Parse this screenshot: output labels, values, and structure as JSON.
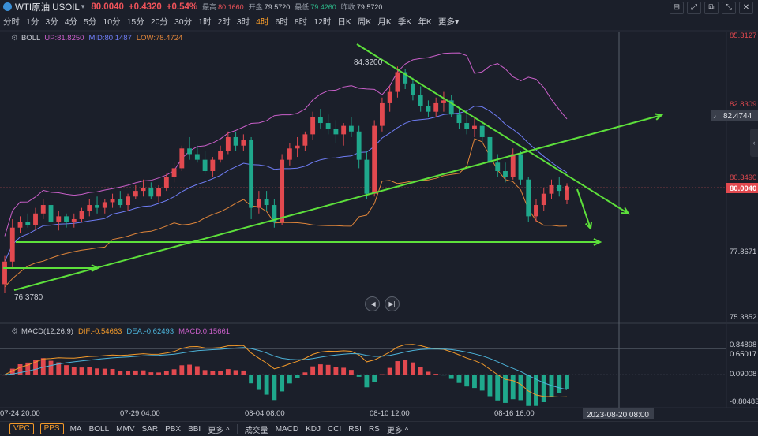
{
  "header": {
    "symbol": "WTI原油 USOIL",
    "caret": "▾",
    "price": "80.0040",
    "change": "+0.4320",
    "change_pct": "+0.54%",
    "high_label": "最高",
    "high": "80.1660",
    "open_label": "开盘",
    "open": "79.5720",
    "low_label": "最低",
    "low": "79.4260",
    "prev_close_label": "昨收",
    "prev_close": "79.5720"
  },
  "window_buttons": [
    "⊟",
    "⤢",
    "⧉",
    "⤡",
    "✕"
  ],
  "periods": [
    {
      "label": "分时",
      "active": false
    },
    {
      "label": "1分",
      "active": false
    },
    {
      "label": "3分",
      "active": false
    },
    {
      "label": "4分",
      "active": false
    },
    {
      "label": "5分",
      "active": false
    },
    {
      "label": "10分",
      "active": false
    },
    {
      "label": "15分",
      "active": false
    },
    {
      "label": "20分",
      "active": false
    },
    {
      "label": "30分",
      "active": false
    },
    {
      "label": "1时",
      "active": false
    },
    {
      "label": "2时",
      "active": false
    },
    {
      "label": "3时",
      "active": false
    },
    {
      "label": "4时",
      "active": true
    },
    {
      "label": "6时",
      "active": false
    },
    {
      "label": "8时",
      "active": false
    },
    {
      "label": "12时",
      "active": false
    },
    {
      "label": "日K",
      "active": false
    },
    {
      "label": "周K",
      "active": false
    },
    {
      "label": "月K",
      "active": false
    },
    {
      "label": "季K",
      "active": false
    },
    {
      "label": "年K",
      "active": false
    },
    {
      "label": "更多▾",
      "active": false
    }
  ],
  "boll": {
    "name": "BOLL",
    "up": "UP:81.8250",
    "mid": "MID:80.1487",
    "low": "LOW:78.4724",
    "colors": {
      "up": "#c95fc9",
      "mid": "#6f7df5",
      "low": "#e0853a"
    }
  },
  "macd": {
    "name": "MACD(12,26,9)",
    "dif": "DIF:-0.54663",
    "dea": "DEA:-0.62493",
    "macd": "MACD:0.15661",
    "colors": {
      "dif": "#f39a2a",
      "dea": "#4cb3d9",
      "macd": "#c95fc9"
    }
  },
  "price_axis": [
    "85.3127",
    "82.8309",
    "80.3490",
    "77.8671",
    "75.3852"
  ],
  "price_axis_highlights": {
    "crosshair_value": "82.4744",
    "current_value": "80.0040"
  },
  "macd_axis": [
    "0.84898",
    "0.65017",
    "0.09008",
    "-0.80483"
  ],
  "time_axis": [
    "07-24 20:00",
    "07-29 04:00",
    "08-04 08:00",
    "08-10 12:00",
    "08-16 16:00"
  ],
  "time_cursor": "2023-08-20 08:00",
  "annotations": {
    "high": "84.3200",
    "low": "76.3780"
  },
  "nav_buttons": [
    "|◀",
    "▶|"
  ],
  "side_handle": "‹",
  "bottom": {
    "tags": [
      "VPC",
      "PPS"
    ],
    "main_indicators": [
      "MA",
      "BOLL",
      "MMV",
      "SAR",
      "PBX",
      "BBI",
      "更多 ^"
    ],
    "sub_indicators": [
      "成交量",
      "MACD",
      "KDJ",
      "CCI",
      "RSI",
      "RS",
      "更多 ^"
    ]
  },
  "chart_data": {
    "type": "candlestick",
    "symbol": "WTI原油 USOIL",
    "timeframe": "4时",
    "price_range": [
      75.3852,
      85.3127
    ],
    "x": [
      "07-24 20:00",
      "07-29 04:00",
      "08-04 08:00",
      "08-10 12:00",
      "08-16 16:00"
    ],
    "candles": [
      [
        76.6,
        77.6,
        76.3,
        77.4
      ],
      [
        77.4,
        78.9,
        77.2,
        78.6
      ],
      [
        78.6,
        79.0,
        78.4,
        78.8
      ],
      [
        78.8,
        79.1,
        78.6,
        78.7
      ],
      [
        78.7,
        79.3,
        78.5,
        79.1
      ],
      [
        79.1,
        79.6,
        78.9,
        79.4
      ],
      [
        79.4,
        79.5,
        78.6,
        78.8
      ],
      [
        78.8,
        79.2,
        78.5,
        79.0
      ],
      [
        79.0,
        79.1,
        78.6,
        78.8
      ],
      [
        78.8,
        79.1,
        78.6,
        78.9
      ],
      [
        78.9,
        79.3,
        78.8,
        79.2
      ],
      [
        79.2,
        79.6,
        79.0,
        79.4
      ],
      [
        79.4,
        79.7,
        79.1,
        79.3
      ],
      [
        79.3,
        79.6,
        79.1,
        79.5
      ],
      [
        79.5,
        79.8,
        79.3,
        79.6
      ],
      [
        79.6,
        79.9,
        79.3,
        79.4
      ],
      [
        79.4,
        79.8,
        79.2,
        79.7
      ],
      [
        79.7,
        80.1,
        79.6,
        79.9
      ],
      [
        79.9,
        80.3,
        79.7,
        80.0
      ],
      [
        80.0,
        80.2,
        79.6,
        79.7
      ],
      [
        79.7,
        80.1,
        79.5,
        80.0
      ],
      [
        80.0,
        80.5,
        79.9,
        80.4
      ],
      [
        80.4,
        80.9,
        80.2,
        80.7
      ],
      [
        80.7,
        81.5,
        80.6,
        81.4
      ],
      [
        81.4,
        81.8,
        81.0,
        81.2
      ],
      [
        81.2,
        81.5,
        80.9,
        81.0
      ],
      [
        81.0,
        81.3,
        80.5,
        80.6
      ],
      [
        80.6,
        81.1,
        80.4,
        81.0
      ],
      [
        81.0,
        81.5,
        80.9,
        81.3
      ],
      [
        81.3,
        82.0,
        81.2,
        81.8
      ],
      [
        81.8,
        82.0,
        81.3,
        81.5
      ],
      [
        81.5,
        81.9,
        81.3,
        81.7
      ],
      [
        81.7,
        81.8,
        78.9,
        79.3
      ],
      [
        79.3,
        79.9,
        79.1,
        79.6
      ],
      [
        79.6,
        79.9,
        79.2,
        79.4
      ],
      [
        79.4,
        79.6,
        78.6,
        78.8
      ],
      [
        78.8,
        81.2,
        78.7,
        81.0
      ],
      [
        81.0,
        81.6,
        80.8,
        81.4
      ],
      [
        81.4,
        81.8,
        81.1,
        81.5
      ],
      [
        81.5,
        82.0,
        81.3,
        81.9
      ],
      [
        81.9,
        82.7,
        81.7,
        82.5
      ],
      [
        82.5,
        82.8,
        82.1,
        82.3
      ],
      [
        82.3,
        82.6,
        81.9,
        82.1
      ],
      [
        82.1,
        82.4,
        81.6,
        81.9
      ],
      [
        81.9,
        82.3,
        81.5,
        82.2
      ],
      [
        82.2,
        82.5,
        81.8,
        82.0
      ],
      [
        82.0,
        82.2,
        80.7,
        81.0
      ],
      [
        81.0,
        81.3,
        79.6,
        79.8
      ],
      [
        79.8,
        82.4,
        79.7,
        82.2
      ],
      [
        82.2,
        83.2,
        82.0,
        83.0
      ],
      [
        83.0,
        83.6,
        82.7,
        83.4
      ],
      [
        83.4,
        84.3,
        83.2,
        84.1
      ],
      [
        84.1,
        84.2,
        83.5,
        83.7
      ],
      [
        83.7,
        83.9,
        83.1,
        83.3
      ],
      [
        83.3,
        83.6,
        82.7,
        82.9
      ],
      [
        82.9,
        83.1,
        82.5,
        82.7
      ],
      [
        82.7,
        83.2,
        82.5,
        83.0
      ],
      [
        83.0,
        83.4,
        82.7,
        83.1
      ],
      [
        83.1,
        83.3,
        82.5,
        82.6
      ],
      [
        82.6,
        82.8,
        82.1,
        82.3
      ],
      [
        82.3,
        82.6,
        81.9,
        82.1
      ],
      [
        82.1,
        82.5,
        81.8,
        82.2
      ],
      [
        82.2,
        82.4,
        81.6,
        81.8
      ],
      [
        81.8,
        81.9,
        80.7,
        80.9
      ],
      [
        80.9,
        81.2,
        80.4,
        80.6
      ],
      [
        80.6,
        80.9,
        80.2,
        80.4
      ],
      [
        80.4,
        81.4,
        80.3,
        81.2
      ],
      [
        81.2,
        81.3,
        80.1,
        80.3
      ],
      [
        80.3,
        80.4,
        78.8,
        79.0
      ],
      [
        79.0,
        79.6,
        78.8,
        79.4
      ],
      [
        79.4,
        80.0,
        79.2,
        79.8
      ],
      [
        79.8,
        80.3,
        79.6,
        80.1
      ],
      [
        80.1,
        80.4,
        79.7,
        79.9
      ],
      [
        79.57,
        80.17,
        79.43,
        80.0
      ]
    ],
    "bollinger": {
      "up": 81.825,
      "mid": 80.1487,
      "low": 78.4724
    },
    "macd": {
      "dif": -0.54663,
      "dea": -0.62493,
      "macd": 0.15661,
      "range": [
        -0.80483,
        0.84898
      ]
    }
  }
}
